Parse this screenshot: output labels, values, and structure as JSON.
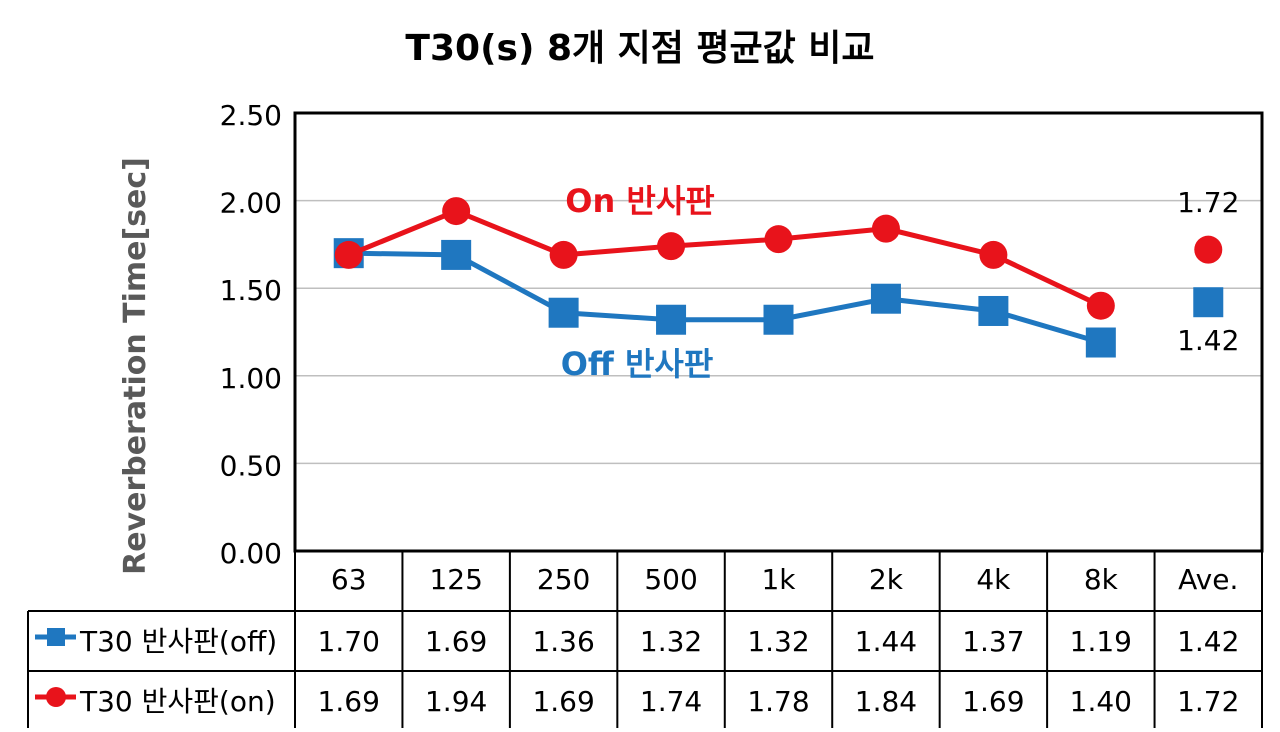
{
  "chart_data": {
    "type": "line",
    "title": "T30(s) 8개 지점 평균값 비교",
    "ylabel": "Reverberation Time[sec]",
    "ylim": [
      0,
      2.5
    ],
    "yticks": [
      "0.00",
      "0.50",
      "1.00",
      "1.50",
      "2.00",
      "2.50"
    ],
    "categories": [
      "63",
      "125",
      "250",
      "500",
      "1k",
      "2k",
      "4k",
      "8k",
      "Ave."
    ],
    "grid": true,
    "series": [
      {
        "name": "T30 반사판(off)",
        "marker": "square",
        "color": "#1F77C0",
        "values": [
          1.7,
          1.69,
          1.36,
          1.32,
          1.32,
          1.44,
          1.37,
          1.19,
          1.42
        ],
        "labels": [
          "1.70",
          "1.69",
          "1.36",
          "1.32",
          "1.32",
          "1.44",
          "1.37",
          "1.19",
          "1.42"
        ],
        "connect_last": false
      },
      {
        "name": "T30 반사판(on)",
        "marker": "circle",
        "color": "#E8131B",
        "values": [
          1.69,
          1.94,
          1.69,
          1.74,
          1.78,
          1.84,
          1.69,
          1.4,
          1.72
        ],
        "labels": [
          "1.69",
          "1.94",
          "1.69",
          "1.74",
          "1.78",
          "1.84",
          "1.69",
          "1.40",
          "1.72"
        ],
        "connect_last": false
      }
    ],
    "annotations": [
      {
        "text": "On 반사판",
        "color": "#E8131B"
      },
      {
        "text": "Off 반사판",
        "color": "#1F77C0"
      },
      {
        "text": "1.72",
        "color": "#000000"
      },
      {
        "text": "1.42",
        "color": "#000000"
      }
    ]
  }
}
